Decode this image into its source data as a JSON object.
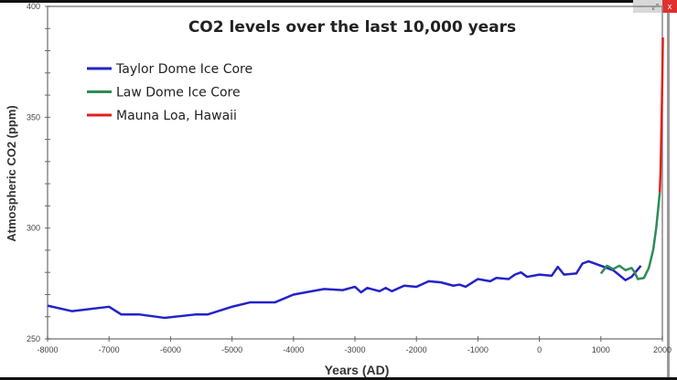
{
  "window": {
    "minimize": "-",
    "restore": "⤢",
    "close": "x",
    "close_color": "#e03030"
  },
  "chart_data": {
    "type": "line",
    "title": "CO2 levels over the last 10,000 years",
    "xlabel": "Years (AD)",
    "ylabel": "Atmospheric CO2 (ppm)",
    "xlim": [
      -8000,
      2000
    ],
    "ylim": [
      250,
      400
    ],
    "xticks": [
      -8000,
      -7000,
      -6000,
      -5000,
      -4000,
      -3000,
      -2000,
      -1000,
      0,
      1000,
      2000
    ],
    "yticks": [
      250,
      300,
      350,
      400
    ],
    "grid": false,
    "legend": "top-left",
    "series": [
      {
        "name": "Taylor Dome Ice Core",
        "color": "#2323c8",
        "points": [
          [
            -8000,
            265
          ],
          [
            -7600,
            262.5
          ],
          [
            -7000,
            264.5
          ],
          [
            -6800,
            261
          ],
          [
            -6500,
            261
          ],
          [
            -6100,
            259.5
          ],
          [
            -5600,
            261
          ],
          [
            -5400,
            261
          ],
          [
            -5000,
            264.5
          ],
          [
            -4700,
            266.5
          ],
          [
            -4300,
            266.5
          ],
          [
            -4000,
            270
          ],
          [
            -3800,
            271
          ],
          [
            -3500,
            272.5
          ],
          [
            -3200,
            272
          ],
          [
            -3000,
            273.5
          ],
          [
            -2900,
            271
          ],
          [
            -2800,
            273
          ],
          [
            -2600,
            271.5
          ],
          [
            -2500,
            273
          ],
          [
            -2400,
            271.5
          ],
          [
            -2200,
            274
          ],
          [
            -2000,
            273.5
          ],
          [
            -1800,
            276
          ],
          [
            -1600,
            275.5
          ],
          [
            -1400,
            274
          ],
          [
            -1300,
            274.5
          ],
          [
            -1200,
            273.5
          ],
          [
            -1000,
            277
          ],
          [
            -800,
            276
          ],
          [
            -700,
            277.5
          ],
          [
            -500,
            277
          ],
          [
            -400,
            279
          ],
          [
            -300,
            280
          ],
          [
            -200,
            278
          ],
          [
            0,
            279
          ],
          [
            200,
            278.5
          ],
          [
            300,
            282.5
          ],
          [
            400,
            279
          ],
          [
            600,
            279.5
          ],
          [
            700,
            284
          ],
          [
            800,
            285
          ],
          [
            1000,
            283
          ],
          [
            1200,
            281
          ],
          [
            1400,
            276.5
          ],
          [
            1500,
            278
          ],
          [
            1650,
            283
          ]
        ]
      },
      {
        "name": "Law Dome Ice Core",
        "color": "#2e8b57",
        "points": [
          [
            1000,
            279.5
          ],
          [
            1100,
            283
          ],
          [
            1200,
            281.5
          ],
          [
            1300,
            283
          ],
          [
            1400,
            281
          ],
          [
            1500,
            282
          ],
          [
            1550,
            280
          ],
          [
            1600,
            277
          ],
          [
            1700,
            277.5
          ],
          [
            1780,
            282
          ],
          [
            1850,
            290
          ],
          [
            1900,
            300
          ],
          [
            1958,
            316
          ]
        ]
      },
      {
        "name": "Mauna Loa, Hawaii",
        "color": "#e02020",
        "points": [
          [
            1958,
            316
          ],
          [
            1970,
            325
          ],
          [
            1980,
            338
          ],
          [
            1990,
            353
          ],
          [
            2000,
            369
          ],
          [
            2008,
            386
          ]
        ]
      }
    ]
  }
}
